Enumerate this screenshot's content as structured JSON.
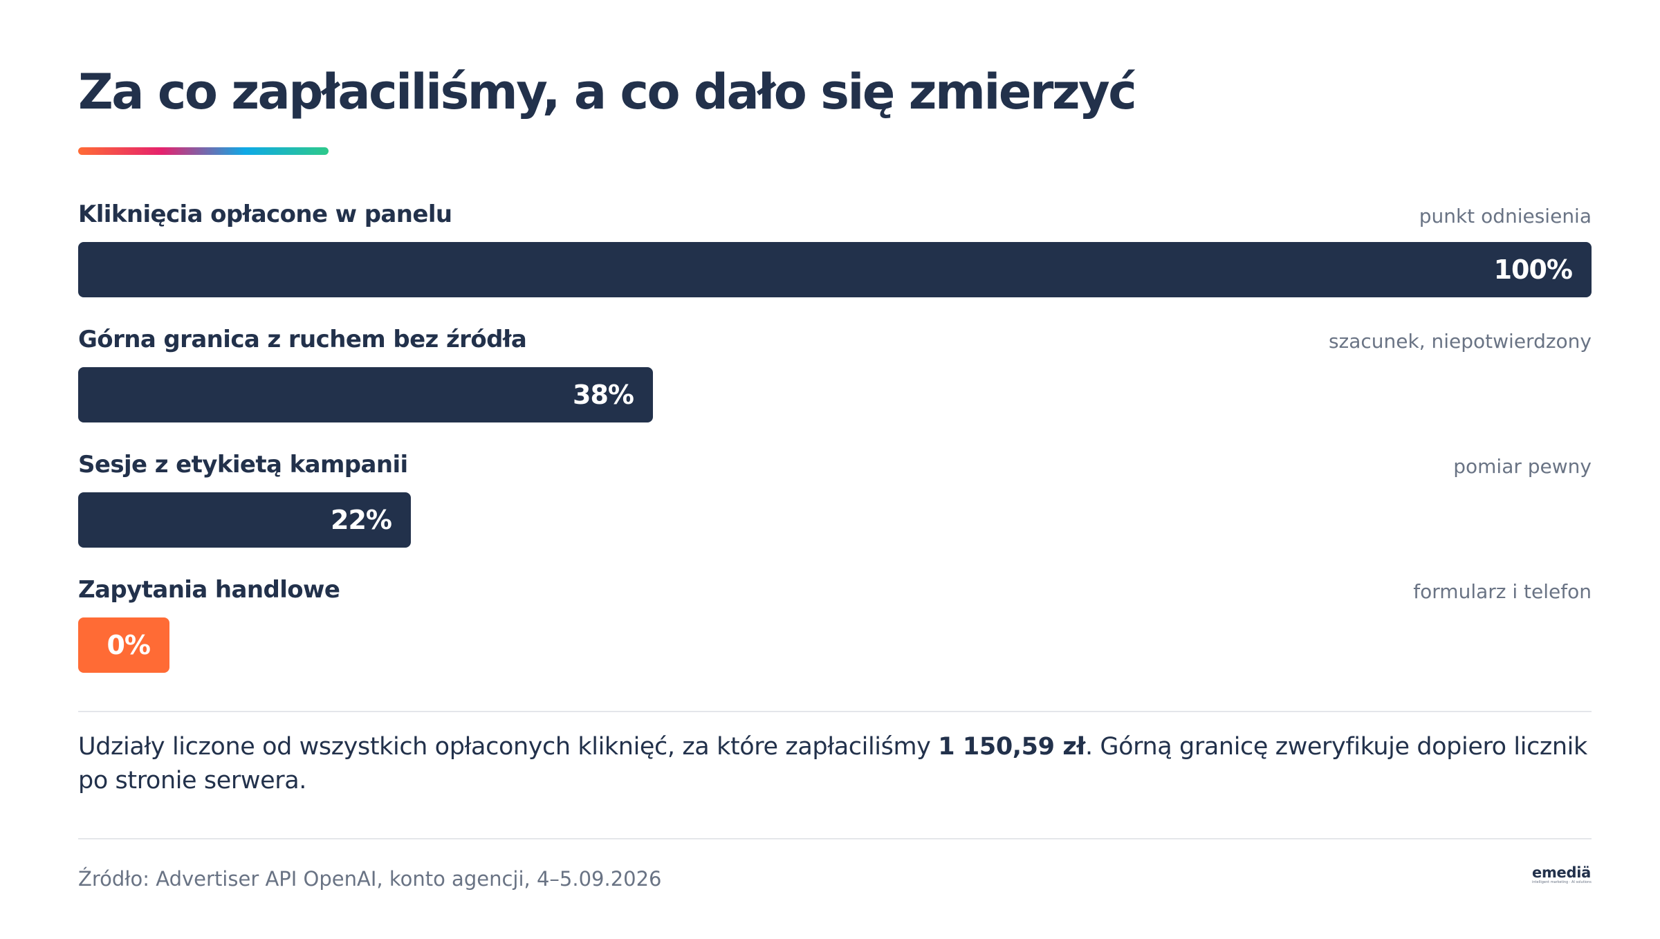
{
  "title": "Za co zapłaciliśmy, a co dało się zmierzyć",
  "colors": {
    "bar_primary": "#22314b",
    "bar_highlight": "#ff6b35",
    "title_rule_gradient": [
      "#ff6b35",
      "#e5226d",
      "#0fa9e6",
      "#2ec98a"
    ]
  },
  "chart_data": {
    "type": "bar",
    "orientation": "horizontal",
    "categories": [
      "Kliknięcia opłacone w panelu",
      "Górna granica z ruchem bez źródła",
      "Sesje z etykietą kampanii",
      "Zapytania handlowe"
    ],
    "values": [
      100,
      38,
      22,
      0
    ],
    "value_labels": [
      "100%",
      "38%",
      "22%",
      "0%"
    ],
    "notes": [
      "punkt odniesienia",
      "szacunek, niepotwierdzony",
      "pomiar pewny",
      "formularz i telefon"
    ],
    "highlight": [
      false,
      false,
      false,
      true
    ],
    "xlim": [
      0,
      100
    ],
    "unit": "%",
    "grid": false,
    "legend": "none"
  },
  "summary": {
    "before": "Udziały liczone od wszystkich opłaconych kliknięć, za które zapłaciliśmy ",
    "amount": "1 150,59 zł",
    "after": ". Górną granicę zweryfikuje dopiero licznik po stronie serwera."
  },
  "source": "Źródło: Advertiser API OpenAI, konto agencji, 4–5.09.2026",
  "logo": {
    "word": "emediä",
    "tagline": "intelligent marketing · AI solutions"
  }
}
